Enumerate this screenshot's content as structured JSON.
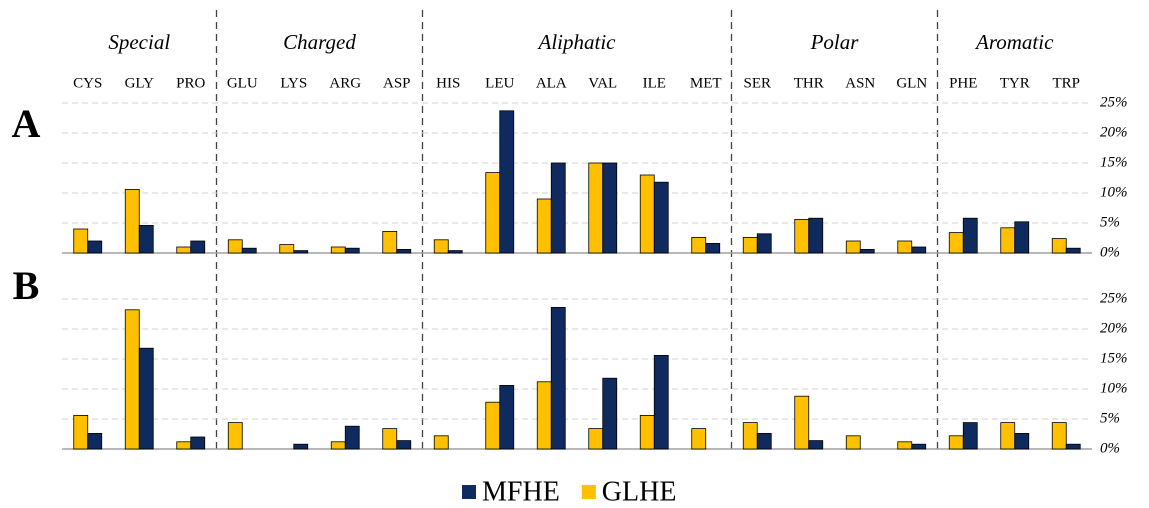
{
  "chart_data": [
    {
      "type": "bar",
      "title": "A",
      "groups": [
        {
          "name": "Special",
          "categories": [
            "CYS",
            "GLY",
            "PRO"
          ]
        },
        {
          "name": "Charged",
          "categories": [
            "GLU",
            "LYS",
            "ARG",
            "ASP"
          ]
        },
        {
          "name": "Aliphatic",
          "categories": [
            "HIS",
            "LEU",
            "ALA",
            "VAL",
            "ILE",
            "MET"
          ]
        },
        {
          "name": "Polar",
          "categories": [
            "SER",
            "THR",
            "ASN",
            "GLN"
          ]
        },
        {
          "name": "Aromatic",
          "categories": [
            "PHE",
            "TYR",
            "TRP"
          ]
        }
      ],
      "series": [
        {
          "color": "#FFC000",
          "values": [
            4,
            10.6,
            1,
            2.2,
            1.4,
            1,
            3.6,
            2.2,
            13.4,
            9,
            15,
            13,
            2.6,
            2.6,
            5.6,
            2,
            2,
            3.4,
            4.2,
            2.4
          ]
        },
        {
          "color": "#0E2A5E",
          "values": [
            2,
            4.6,
            2,
            0.8,
            0.4,
            0.8,
            0.6,
            0.4,
            23.7,
            15,
            15,
            11.8,
            1.6,
            3.2,
            5.8,
            0.6,
            1,
            5.8,
            5.2,
            0.8
          ]
        }
      ],
      "ylim": [
        0,
        25
      ],
      "yticks": [
        {
          "value": 0,
          "label": "0%"
        },
        {
          "value": 5,
          "label": "5%"
        },
        {
          "value": 10,
          "label": "10%"
        },
        {
          "value": 15,
          "label": "15%"
        },
        {
          "value": 20,
          "label": "20%"
        },
        {
          "value": 25,
          "label": "25%"
        }
      ],
      "grid": true
    },
    {
      "type": "bar",
      "title": "B",
      "series": [
        {
          "name": "GLHE",
          "color": "#FFC000",
          "values": [
            5.6,
            23.2,
            1.2,
            4.4,
            0,
            1.2,
            3.4,
            2.2,
            7.8,
            11.2,
            3.4,
            5.6,
            3.4,
            4.4,
            8.8,
            2.2,
            1.2,
            2.2,
            4.4,
            4.4
          ]
        },
        {
          "name": "MFHE",
          "color": "#0E2A5E",
          "values": [
            2.6,
            16.8,
            2,
            0,
            0.8,
            3.8,
            1.4,
            0,
            10.6,
            23.6,
            11.8,
            15.6,
            0,
            2.6,
            1.4,
            0,
            0.8,
            4.4,
            2.6,
            0.8
          ]
        }
      ],
      "ylim": [
        0,
        25
      ],
      "yticks": [
        {
          "value": 0,
          "label": "0%"
        },
        {
          "value": 5,
          "label": "5%"
        },
        {
          "value": 10,
          "label": "10%"
        },
        {
          "value": 15,
          "label": "15%"
        },
        {
          "value": 20,
          "label": "20%"
        },
        {
          "value": 25,
          "label": "25%"
        }
      ],
      "grid": true
    }
  ]
}
